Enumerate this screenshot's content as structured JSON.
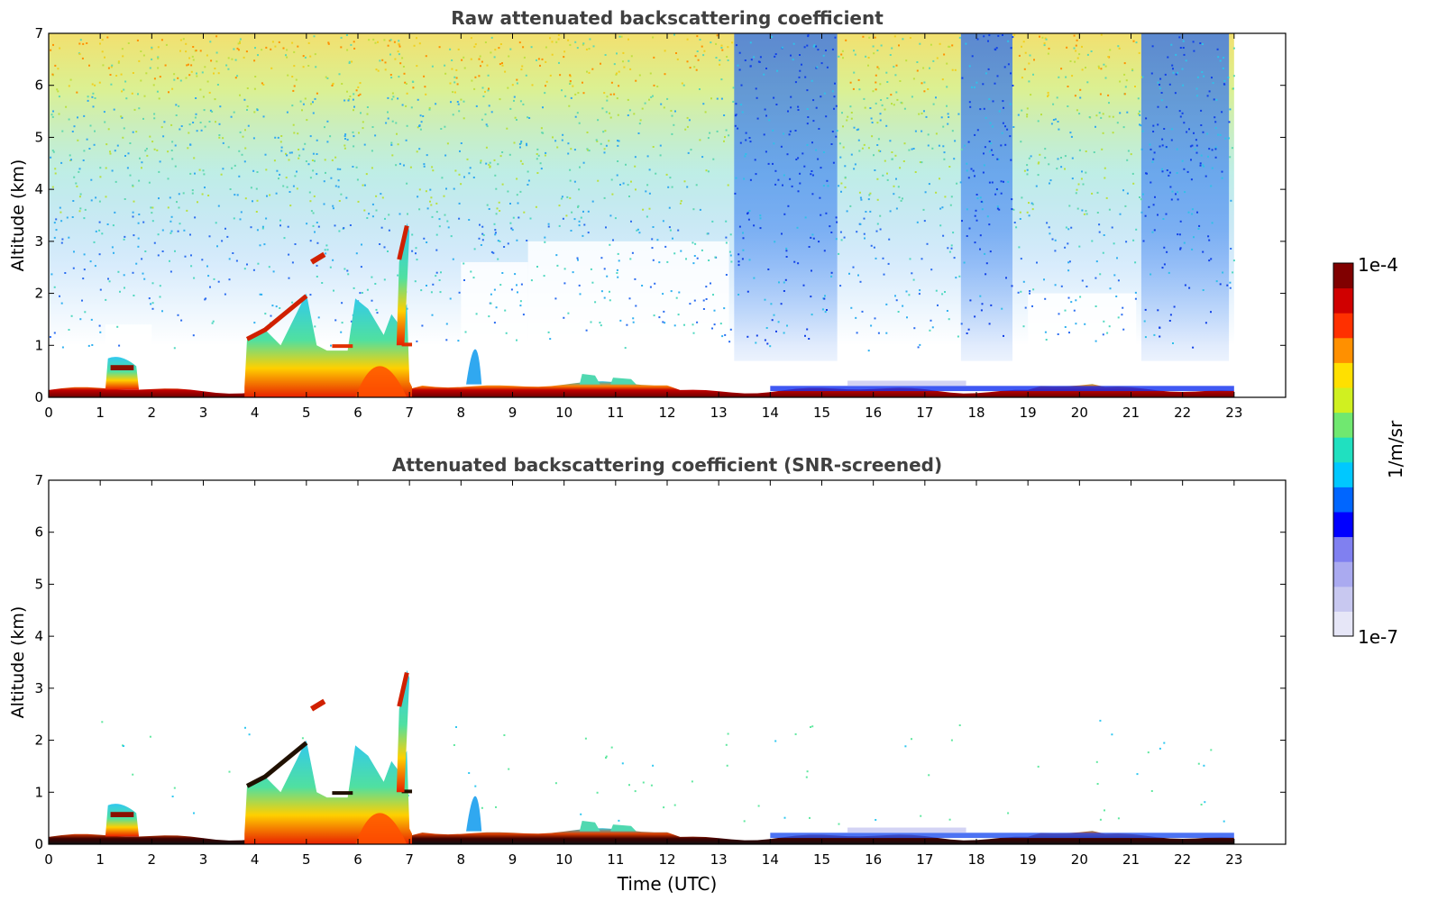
{
  "chart_data": [
    {
      "type": "heatmap",
      "title": "Raw attenuated backscattering coefficient",
      "xlabel": "",
      "ylabel": "Altitude (km)",
      "xlim": [
        0,
        24
      ],
      "ylim": [
        0,
        7
      ],
      "x_ticks": [
        "0",
        "1",
        "2",
        "3",
        "4",
        "5",
        "6",
        "7",
        "8",
        "9",
        "10",
        "11",
        "12",
        "13",
        "14",
        "15",
        "16",
        "17",
        "18",
        "19",
        "20",
        "21",
        "22",
        "23"
      ],
      "y_ticks": [
        "0",
        "1",
        "2",
        "3",
        "4",
        "5",
        "6",
        "7"
      ],
      "data_time_range": [
        0,
        23
      ],
      "colormap": "jet",
      "color_scale": "log",
      "features": [
        {
          "kind": "surface-layer",
          "from": 0,
          "to": 23,
          "top_km": 0.2
        },
        {
          "kind": "boundary-layer",
          "from": 3.8,
          "to": 7.0,
          "top_km": 1.9
        },
        {
          "kind": "cloud",
          "at": 5.2,
          "alt_km": 2.7
        },
        {
          "kind": "cloud",
          "at": 6.8,
          "alt_km": 3.2
        },
        {
          "kind": "cloud",
          "at": 1.4,
          "alt_km": 0.6
        },
        {
          "kind": "noise-region",
          "from": 0,
          "to": 23,
          "note": "background noise above 1 km"
        },
        {
          "kind": "low-signal-bands",
          "ranges": [
            [
              13.3,
              15.3
            ],
            [
              17.7,
              18.7
            ],
            [
              21.2,
              22.9
            ]
          ]
        }
      ],
      "grid": false
    },
    {
      "type": "heatmap",
      "title": "Attenuated backscattering coefficient (SNR-screened)",
      "xlabel": "Time (UTC)",
      "ylabel": "Altitude (km)",
      "xlim": [
        0,
        24
      ],
      "ylim": [
        0,
        7
      ],
      "x_ticks": [
        "0",
        "1",
        "2",
        "3",
        "4",
        "5",
        "6",
        "7",
        "8",
        "9",
        "10",
        "11",
        "12",
        "13",
        "14",
        "15",
        "16",
        "17",
        "18",
        "19",
        "20",
        "21",
        "22",
        "23"
      ],
      "y_ticks": [
        "0",
        "1",
        "2",
        "3",
        "4",
        "5",
        "6",
        "7"
      ],
      "data_time_range": [
        0,
        23
      ],
      "colormap": "jet",
      "color_scale": "log",
      "features": [
        {
          "kind": "surface-layer",
          "from": 0,
          "to": 23,
          "top_km": 0.2
        },
        {
          "kind": "boundary-layer",
          "from": 3.8,
          "to": 7.0,
          "top_km": 1.9
        },
        {
          "kind": "cloud",
          "at": 5.2,
          "alt_km": 2.7
        },
        {
          "kind": "cloud",
          "at": 6.8,
          "alt_km": 3.2
        }
      ],
      "grid": false
    }
  ],
  "colorbar": {
    "max_label": "1e-4",
    "min_label": "1e-7",
    "unit_label": "1/m/sr",
    "scale": "log",
    "colors": [
      "#e6e6f7",
      "#c8c8f0",
      "#aaaaf0",
      "#8080f0",
      "#0000ff",
      "#0066ff",
      "#00c8ff",
      "#20e0c0",
      "#70e870",
      "#d0f020",
      "#ffe000",
      "#ff9000",
      "#ff3000",
      "#d00000",
      "#800000"
    ]
  }
}
